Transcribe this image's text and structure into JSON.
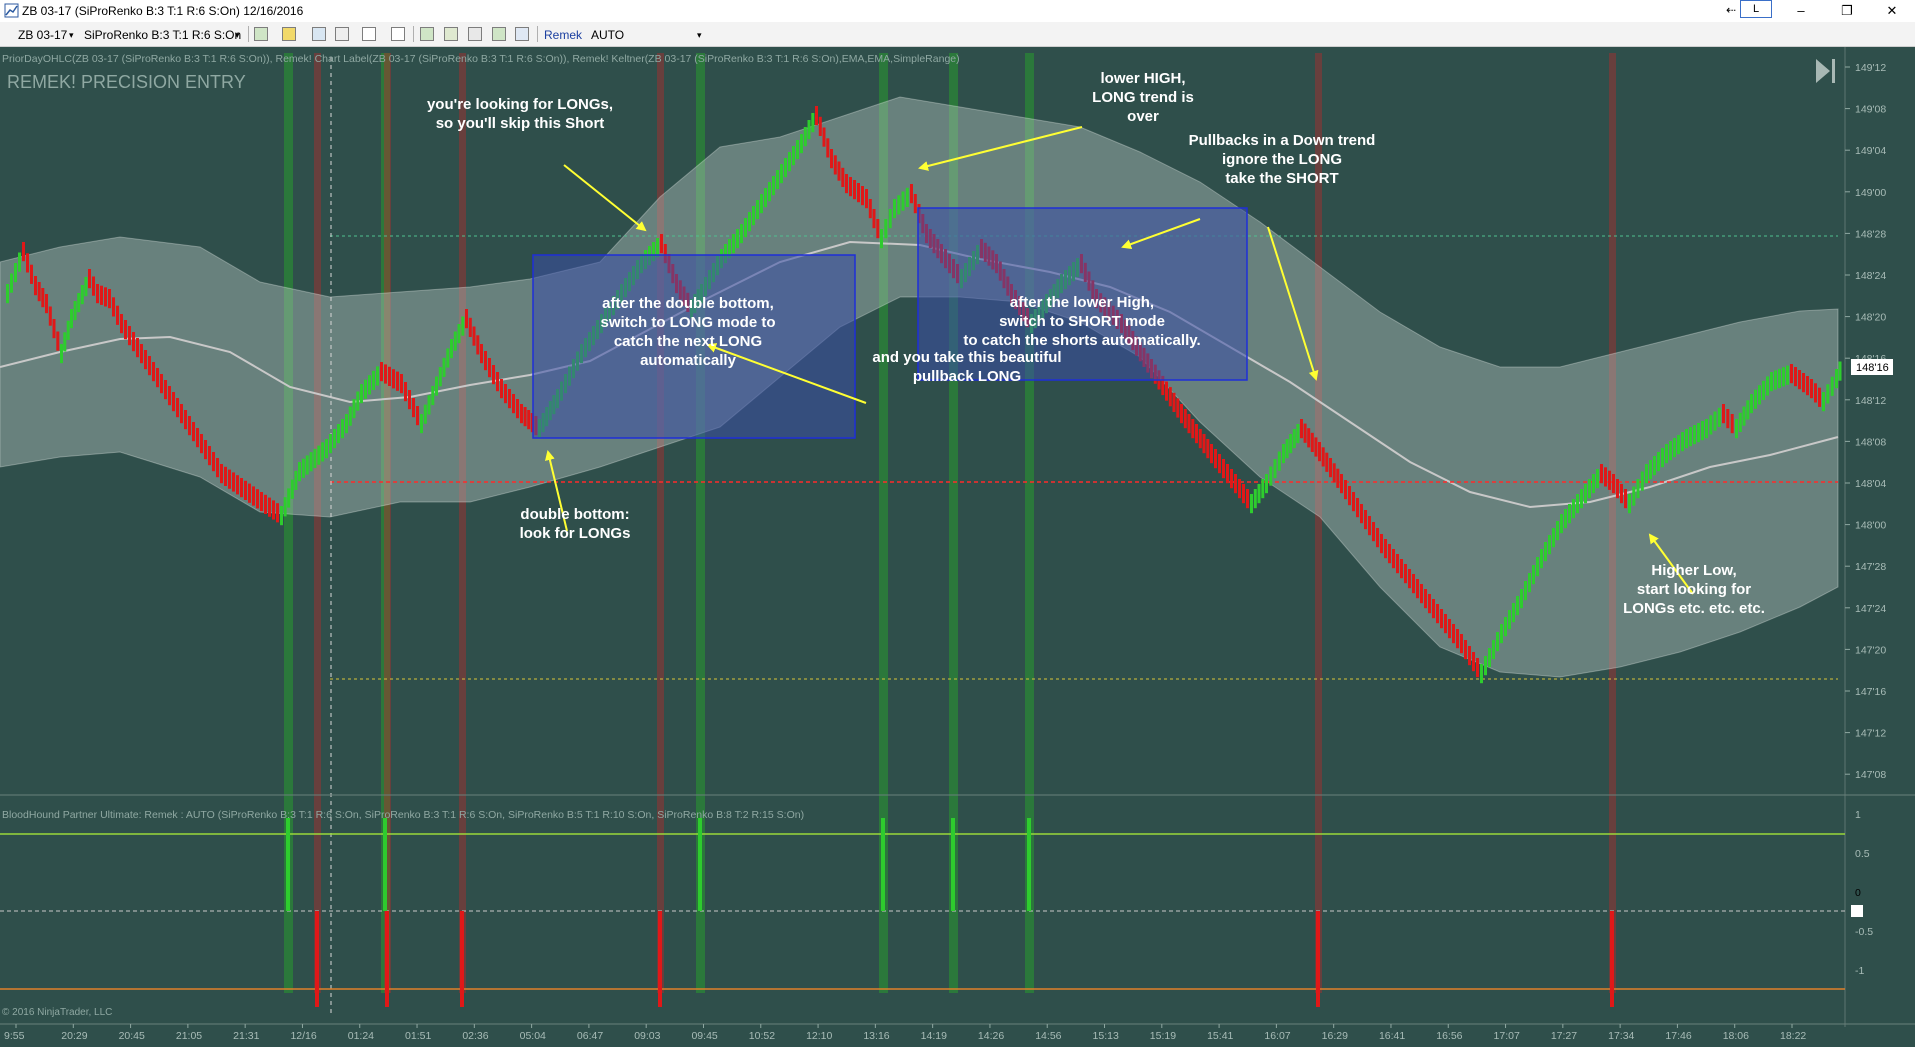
{
  "window": {
    "title": "ZB 03-17 (SiProRenko B:3 T:1 R:6 S:On)  12/16/2016",
    "l_button": "L",
    "minimize": "–",
    "maximize": "❐",
    "close": "✕"
  },
  "toolbar": {
    "instrument": "ZB 03-17",
    "bar_type": "SiProRenko B:3 T:1 R:6 S:On",
    "remek_label": "Remek",
    "mode_value": "AUTO",
    "icons": [
      "bars-icon",
      "pencil-icon",
      "drawing-icon",
      "crosshair-icon",
      "pointer-icon",
      "zoom-icon",
      "chart-trader-icon",
      "data-box-icon",
      "indicators-icon",
      "strategies-icon",
      "properties-icon"
    ]
  },
  "chart": {
    "indicator_line": "PriorDayOHLC(ZB 03-17 (SiProRenko B:3 T:1 R:6 S:On)), Remek! Chart Label(ZB 03-17 (SiProRenko B:3 T:1 R:6 S:On)), Remek! Keltner(ZB 03-17 (SiProRenko B:3 T:1 R:6 S:On),EMA,EMA,SimpleRange)",
    "watermark": "REMEK! PRECISION ENTRY",
    "price_labels": [
      "149'12",
      "149'08",
      "149'04",
      "149'00",
      "148'28",
      "148'24",
      "148'20",
      "148'16",
      "148'12",
      "148'08",
      "148'04",
      "148'00",
      "147'28",
      "147'24",
      "147'20",
      "147'16",
      "147'12",
      "147'08"
    ],
    "current_price": "148'16",
    "lower_panel_label": "BloodHound Partner Ultimate: Remek : AUTO (SiProRenko B:3 T:1 R:6 S:On, SiProRenko B:3 T:1 R:6 S:On, SiProRenko B:5 T:1 R:10 S:On, SiProRenko B:8 T:2 R:15 S:On)",
    "lower_axis_labels": [
      "1",
      "0.5",
      "0",
      "-0.5",
      "-1"
    ],
    "copyright": "© 2016 NinjaTrader, LLC",
    "time_labels": [
      "9:55",
      "20:29",
      "20:45",
      "21:05",
      "21:31",
      "12/16",
      "01:24",
      "01:51",
      "02:36",
      "05:04",
      "06:47",
      "09:03",
      "09:45",
      "10:52",
      "12:10",
      "13:16",
      "14:19",
      "14:26",
      "14:56",
      "15:13",
      "15:19",
      "15:41",
      "16:07",
      "16:29",
      "16:41",
      "16:56",
      "17:07",
      "17:27",
      "17:34",
      "17:46",
      "18:06",
      "18:22"
    ],
    "annotations": [
      {
        "lines": [
          "you're looking for LONGs,",
          "so you'll skip this Short"
        ]
      },
      {
        "lines": [
          "lower HIGH,",
          "LONG trend is",
          "over"
        ]
      },
      {
        "lines": [
          "Pullbacks in a Down trend",
          "ignore the LONG",
          "take the SHORT"
        ]
      },
      {
        "lines": [
          "after the double bottom,",
          "switch to LONG mode to",
          "catch the next LONG",
          "automatically"
        ]
      },
      {
        "lines": [
          "and you take this beautiful",
          "pullback LONG"
        ]
      },
      {
        "lines": [
          "after the lower High,",
          "switch to SHORT mode",
          "to catch the shorts automatically."
        ]
      },
      {
        "lines": [
          "double bottom:",
          "look for LONGs"
        ]
      },
      {
        "lines": [
          "Higher Low,",
          "start looking for",
          "LONGs etc. etc. etc."
        ]
      }
    ]
  },
  "colors": {
    "background": "#2f4f4b",
    "bull": "#2ecc2e",
    "bear": "#e01818",
    "arrow": "#ffff33",
    "box_fill": "#3a4fa8",
    "box_border": "#1f2fd8"
  }
}
